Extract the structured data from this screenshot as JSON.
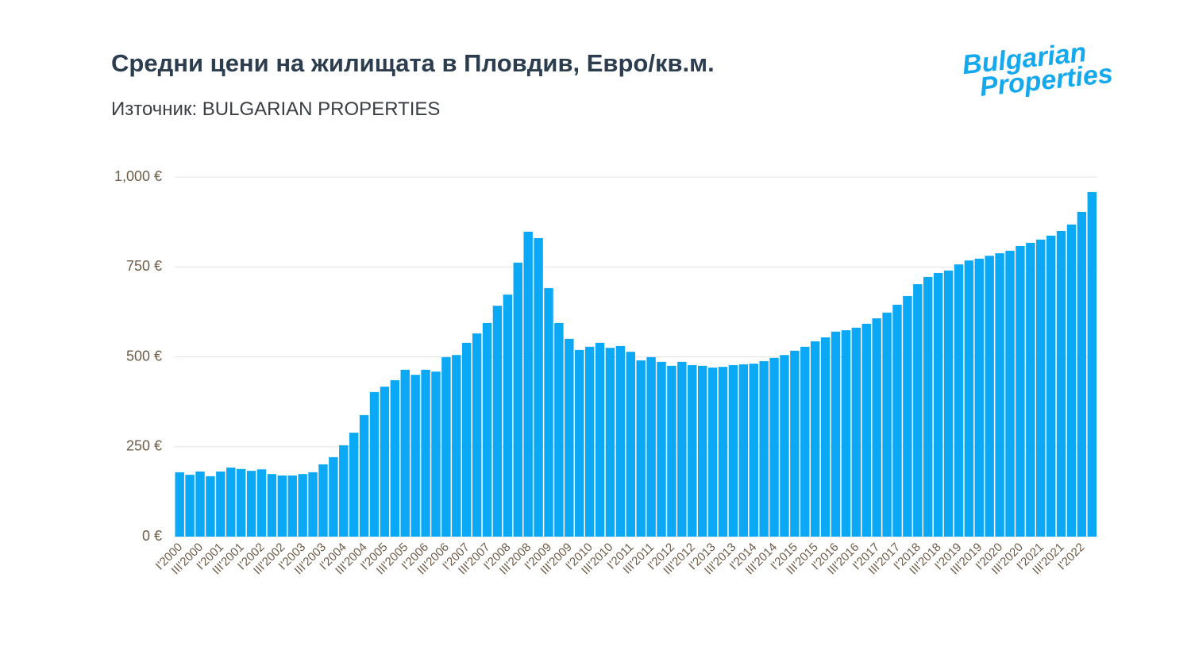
{
  "chart_data": {
    "type": "bar",
    "title": "Средни цени на жилищата в Пловдив, Евро/кв.м.",
    "subtitle": "Източник: BULGARIAN PROPERTIES",
    "logo": [
      "Bulgarian",
      "Properties"
    ],
    "color": "#0aa8f5",
    "grid": true,
    "ylim": [
      0,
      1000
    ],
    "yticks": [
      {
        "value": 0,
        "label": "0 €"
      },
      {
        "value": 250,
        "label": "250 €"
      },
      {
        "value": 500,
        "label": "500 €"
      },
      {
        "value": 750,
        "label": "750 €"
      },
      {
        "value": 1000,
        "label": "1,000 €"
      }
    ],
    "categories": [
      "I'2000",
      null,
      "III'2000",
      null,
      "I'2001",
      null,
      "III'2001",
      null,
      "I'2002",
      null,
      "III'2002",
      null,
      "I'2003",
      null,
      "III'2003",
      null,
      "I'2004",
      null,
      "III'2004",
      null,
      "I'2005",
      null,
      "III'2005",
      null,
      "I'2006",
      null,
      "III'2006",
      null,
      "I'2007",
      null,
      "III'2007",
      null,
      "I'2008",
      null,
      "III'2008",
      null,
      "I'2009",
      null,
      "III'2009",
      null,
      "I'2010",
      null,
      "III'2010",
      null,
      "I'2011",
      null,
      "III'2011",
      null,
      "I'2012",
      null,
      "III'2012",
      null,
      "I'2013",
      null,
      "III'2013",
      null,
      "I'2014",
      null,
      "III'2014",
      null,
      "I'2015",
      null,
      "III'2015",
      null,
      "I'2016",
      null,
      "III'2016",
      null,
      "I'2017",
      null,
      "III'2017",
      null,
      "I'2018",
      null,
      "III'2018",
      null,
      "I'2019",
      null,
      "III'2019",
      null,
      "I'2020",
      null,
      "III'2020",
      null,
      "I'2021",
      null,
      "III'2021",
      null,
      "I'2022",
      null
    ],
    "values": [
      179,
      172,
      181,
      168,
      181,
      192,
      188,
      183,
      187,
      174,
      170,
      170,
      174,
      179,
      201,
      221,
      254,
      289,
      338,
      402,
      417,
      435,
      464,
      450,
      464,
      459,
      499,
      505,
      539,
      565,
      594,
      642,
      673,
      762,
      848,
      830,
      691,
      594,
      550,
      519,
      528,
      539,
      525,
      530,
      514,
      490,
      499,
      486,
      475,
      486,
      477,
      475,
      470,
      472,
      477,
      479,
      481,
      488,
      497,
      505,
      517,
      528,
      543,
      554,
      570,
      574,
      581,
      592,
      607,
      623,
      645,
      669,
      702,
      722,
      733,
      740,
      757,
      768,
      773,
      781,
      788,
      795,
      808,
      817,
      826,
      837,
      850,
      868,
      903,
      958
    ]
  }
}
